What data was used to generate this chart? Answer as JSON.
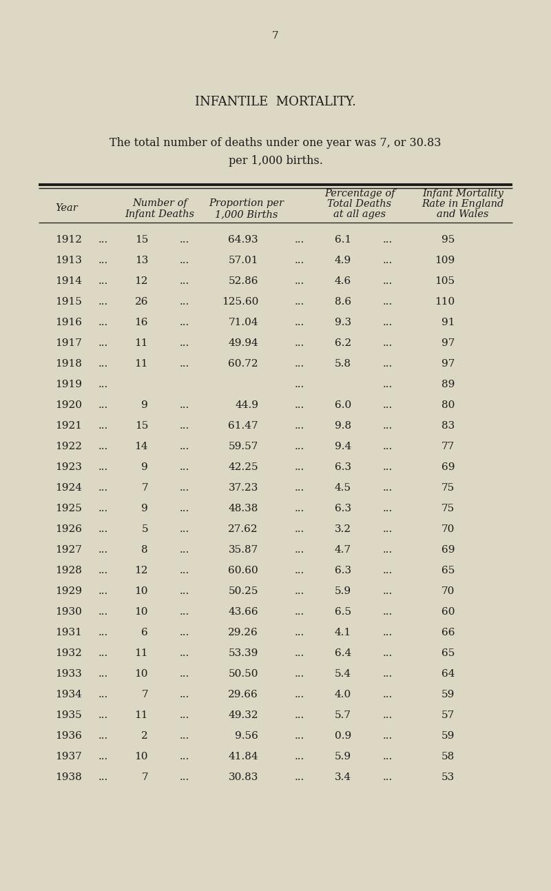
{
  "page_number": "7",
  "title": "INFANTILE  MORTALITY.",
  "subtitle_line1": "The total number of deaths under one year was 7, or 30.83",
  "subtitle_line2": "per 1,000 births.",
  "bg_color": "#ddd8c4",
  "text_color": "#1a1a1a",
  "rows": [
    {
      "year": "1912",
      "num": "15",
      "prop": "64.93",
      "pct": "6.1",
      "eng": "95",
      "has_data": true
    },
    {
      "year": "1913",
      "num": "13",
      "prop": "57.01",
      "pct": "4.9",
      "eng": "109",
      "has_data": true
    },
    {
      "year": "1914",
      "num": "12",
      "prop": "52.86",
      "pct": "4.6",
      "eng": "105",
      "has_data": true
    },
    {
      "year": "1915",
      "num": "26",
      "prop": "125.60",
      "pct": "8.6",
      "eng": "110",
      "has_data": true
    },
    {
      "year": "1916",
      "num": "16",
      "prop": "71.04",
      "pct": "9.3",
      "eng": "91",
      "has_data": true
    },
    {
      "year": "1917",
      "num": "11",
      "prop": "49.94",
      "pct": "6.2",
      "eng": "97",
      "has_data": true
    },
    {
      "year": "1918",
      "num": "11",
      "prop": "60.72",
      "pct": "5.8",
      "eng": "97",
      "has_data": true
    },
    {
      "year": "1919",
      "num": "",
      "prop": "",
      "pct": "",
      "eng": "89",
      "has_data": false
    },
    {
      "year": "1920",
      "num": "9",
      "prop": "44.9",
      "pct": "6.0",
      "eng": "80",
      "has_data": true
    },
    {
      "year": "1921",
      "num": "15",
      "prop": "61.47",
      "pct": "9.8",
      "eng": "83",
      "has_data": true
    },
    {
      "year": "1922",
      "num": "14",
      "prop": "59.57",
      "pct": "9.4",
      "eng": "77",
      "has_data": true
    },
    {
      "year": "1923",
      "num": "9",
      "prop": "42.25",
      "pct": "6.3",
      "eng": "69",
      "has_data": true
    },
    {
      "year": "1924",
      "num": "7",
      "prop": "37.23",
      "pct": "4.5",
      "eng": "75",
      "has_data": true
    },
    {
      "year": "1925",
      "num": "9",
      "prop": "48.38",
      "pct": "6.3",
      "eng": "75",
      "has_data": true
    },
    {
      "year": "1926",
      "num": "5",
      "prop": "27.62",
      "pct": "3.2",
      "eng": "70",
      "has_data": true
    },
    {
      "year": "1927",
      "num": "8",
      "prop": "35.87",
      "pct": "4.7",
      "eng": "69",
      "has_data": true
    },
    {
      "year": "1928",
      "num": "12",
      "prop": "60.60",
      "pct": "6.3",
      "eng": "65",
      "has_data": true
    },
    {
      "year": "1929",
      "num": "10",
      "prop": "50.25",
      "pct": "5.9",
      "eng": "70",
      "has_data": true
    },
    {
      "year": "1930",
      "num": "10",
      "prop": "43.66",
      "pct": "6.5",
      "eng": "60",
      "has_data": true
    },
    {
      "year": "1931",
      "num": "6",
      "prop": "29.26",
      "pct": "4.1",
      "eng": "66",
      "has_data": true
    },
    {
      "year": "1932",
      "num": "11",
      "prop": "53.39",
      "pct": "6.4",
      "eng": "65",
      "has_data": true
    },
    {
      "year": "1933",
      "num": "10",
      "prop": "50.50",
      "pct": "5.4",
      "eng": "64",
      "has_data": true
    },
    {
      "year": "1934",
      "num": "7",
      "prop": "29.66",
      "pct": "4.0",
      "eng": "59",
      "has_data": true
    },
    {
      "year": "1935",
      "num": "11",
      "prop": "49.32",
      "pct": "5.7",
      "eng": "57",
      "has_data": true
    },
    {
      "year": "1936",
      "num": "2",
      "prop": "9.56",
      "pct": "0.9",
      "eng": "59",
      "has_data": true
    },
    {
      "year": "1937",
      "num": "10",
      "prop": "41.84",
      "pct": "5.9",
      "eng": "58",
      "has_data": true
    },
    {
      "year": "1938",
      "num": "7",
      "prop": "30.83",
      "pct": "3.4",
      "eng": "53",
      "has_data": true
    }
  ]
}
